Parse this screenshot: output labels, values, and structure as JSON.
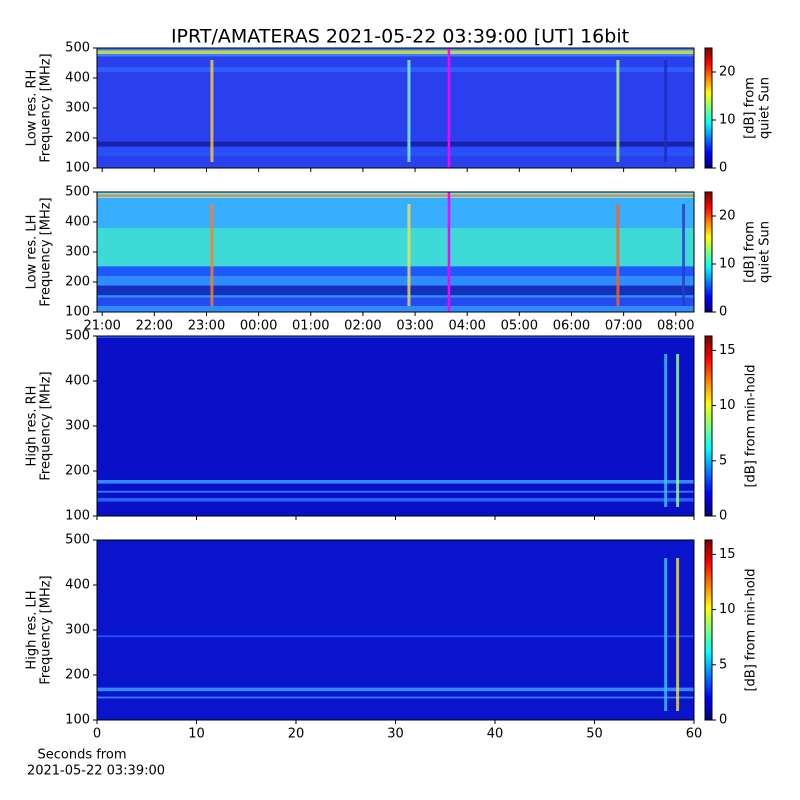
{
  "title": "IPRT/AMATERAS 2021-05-22 03:39:00 [UT]   16bit",
  "xlabel": [
    "Seconds from",
    "2021-05-22 03:39:00"
  ],
  "chart_data": [
    {
      "type": "heatmap",
      "colormap": "jet",
      "ylabel": [
        "Low res. RH",
        "Frequency [MHz]"
      ],
      "ylim": [
        100,
        500
      ],
      "yticks": [
        100,
        200,
        300,
        400,
        500
      ],
      "xlim": [
        20.9,
        32.35
      ],
      "sharex": 1,
      "marker_x": 27.65,
      "marker_color": "#ff00ff",
      "clim": [
        0,
        25
      ],
      "cticks": [
        0,
        10,
        20
      ],
      "clabel": [
        "[dB] from",
        "quiet Sun"
      ]
    },
    {
      "type": "heatmap",
      "colormap": "jet",
      "ylabel": [
        "Low res. LH",
        "Frequency [MHz]"
      ],
      "ylim": [
        100,
        500
      ],
      "yticks": [
        100,
        200,
        300,
        400,
        500
      ],
      "xlim": [
        20.9,
        32.35
      ],
      "xticks": [
        {
          "value": 21,
          "label": "21:00"
        },
        {
          "value": 22,
          "label": "22:00"
        },
        {
          "value": 23,
          "label": "23:00"
        },
        {
          "value": 24,
          "label": "00:00"
        },
        {
          "value": 25,
          "label": "01:00"
        },
        {
          "value": 26,
          "label": "02:00"
        },
        {
          "value": 27,
          "label": "03:00"
        },
        {
          "value": 28,
          "label": "04:00"
        },
        {
          "value": 29,
          "label": "05:00"
        },
        {
          "value": 30,
          "label": "06:00"
        },
        {
          "value": 31,
          "label": "07:00"
        },
        {
          "value": 32,
          "label": "08:00"
        }
      ],
      "marker_x": 27.65,
      "marker_color": "#ff00ff",
      "clim": [
        0,
        25
      ],
      "cticks": [
        0,
        10,
        20
      ],
      "clabel": [
        "[dB] from",
        "quiet Sun"
      ]
    },
    {
      "type": "heatmap",
      "colormap": "jet",
      "ylabel": [
        "High res. RH",
        "Frequency [MHz]"
      ],
      "ylim": [
        100,
        500
      ],
      "yticks": [
        100,
        200,
        300,
        400,
        500
      ],
      "xlim": [
        0,
        60
      ],
      "xticks": [
        0,
        10,
        20,
        30,
        40,
        50,
        60
      ],
      "xticklabels": false,
      "clim": [
        0,
        16.3
      ],
      "cticks": [
        0,
        5,
        10,
        15
      ],
      "clabel": [
        "[dB] from min-hold"
      ]
    },
    {
      "type": "heatmap",
      "colormap": "jet",
      "ylabel": [
        "High res. LH",
        "Frequency [MHz]"
      ],
      "ylim": [
        100,
        500
      ],
      "yticks": [
        100,
        200,
        300,
        400,
        500
      ],
      "xlim": [
        0,
        60
      ],
      "xticks": [
        0,
        10,
        20,
        30,
        40,
        50,
        60
      ],
      "clim": [
        0,
        16.3
      ],
      "cticks": [
        0,
        5,
        10,
        15
      ],
      "clabel": [
        "[dB] from min-hold"
      ]
    }
  ]
}
